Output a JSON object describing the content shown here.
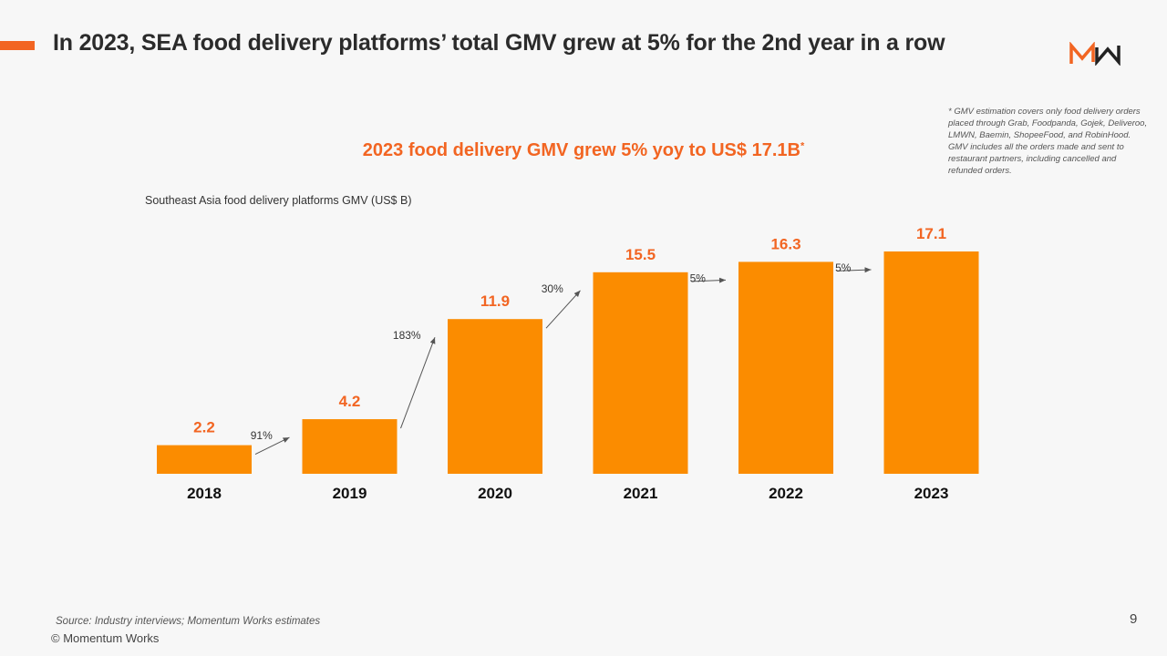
{
  "page": {
    "title": "In 2023, SEA food delivery platforms’ total GMV grew at 5% for the 2nd year in a row",
    "logo_text": "MW",
    "footnote": "* GMV estimation covers only food delivery orders placed through Grab, Foodpanda, Gojek, Deliveroo, LMWN, Baemin, ShopeeFood, and RobinHood. GMV includes all the orders made and sent to restaurant partners, including cancelled and refunded orders.",
    "source": "Source: Industry interviews; Momentum Works estimates",
    "copyright": "© Momentum Works",
    "page_number": "9",
    "colors": {
      "accent": "#f26522",
      "bar": "#fb8c00",
      "background": "#f7f7f7"
    }
  },
  "chart_data": {
    "type": "bar",
    "title": "2023 food delivery GMV grew 5% yoy to US$ 17.1B",
    "title_marker": "*",
    "subtitle": "Southeast Asia food delivery platforms GMV (US$ B)",
    "categories": [
      "2018",
      "2019",
      "2020",
      "2021",
      "2022",
      "2023"
    ],
    "values": [
      2.2,
      4.2,
      11.9,
      15.5,
      16.3,
      17.1
    ],
    "value_labels": [
      "2.2",
      "4.2",
      "11.9",
      "15.5",
      "16.3",
      "17.1"
    ],
    "growth_labels": [
      "91%",
      "183%",
      "30%",
      "5%",
      "5%"
    ],
    "xlabel": "",
    "ylabel": "",
    "ylim": [
      0,
      17.1
    ],
    "grid": false,
    "legend": "none"
  }
}
